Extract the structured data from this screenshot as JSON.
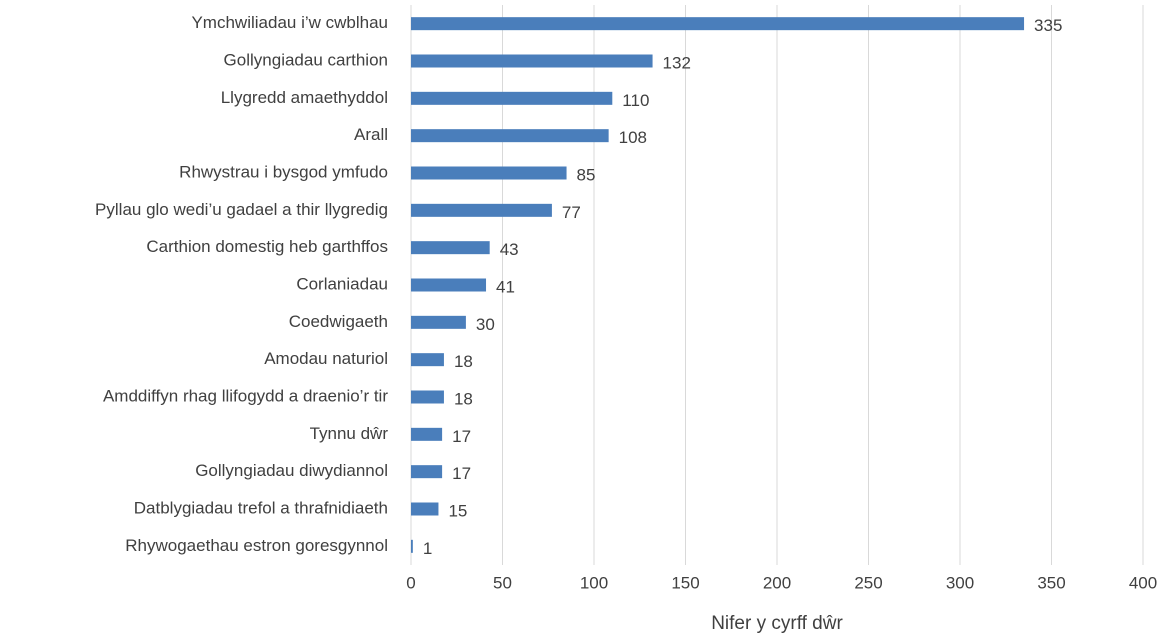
{
  "chart_data": {
    "type": "bar",
    "orientation": "horizontal",
    "xlabel": "Nifer y cyrff dŵr",
    "categories": [
      "Ymchwiliadau i’w cwblhau",
      "Gollyngiadau carthion",
      "Llygredd amaethyddol",
      "Arall",
      "Rhwystrau i bysgod ymfudo",
      "Pyllau glo wedi’u gadael a thir llygredig",
      "Carthion domestig heb garthffos",
      "Corlaniadau",
      "Coedwigaeth",
      "Amodau naturiol",
      "Amddiffyn rhag llifogydd a draenio’r tir",
      "Tynnu dŵr",
      "Gollyngiadau diwydiannol",
      "Datblygiadau trefol a thrafnidiaeth",
      "Rhywogaethau estron goresgynnol"
    ],
    "values": [
      335,
      132,
      110,
      108,
      85,
      77,
      43,
      41,
      30,
      18,
      18,
      17,
      17,
      15,
      1
    ],
    "color": "#4a7ebb",
    "xlim": [
      0,
      400
    ],
    "xticks": [
      0,
      50,
      100,
      150,
      200,
      250,
      300,
      350,
      400
    ],
    "grid": true
  }
}
